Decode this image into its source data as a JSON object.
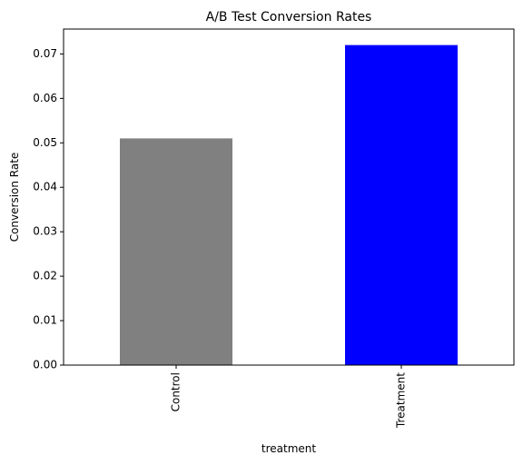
{
  "chart_data": {
    "type": "bar",
    "title": "A/B Test Conversion Rates",
    "xlabel": "treatment",
    "ylabel": "Conversion Rate",
    "categories": [
      "Control",
      "Treatment"
    ],
    "values": [
      0.051,
      0.072
    ],
    "colors": [
      "#808080",
      "#0000ff"
    ],
    "ylim": [
      0,
      0.0756
    ],
    "yticks": [
      0.0,
      0.01,
      0.02,
      0.03,
      0.04,
      0.05,
      0.06,
      0.07
    ],
    "ytick_labels": [
      "0.00",
      "0.01",
      "0.02",
      "0.03",
      "0.04",
      "0.05",
      "0.06",
      "0.07"
    ],
    "grid": false,
    "legend": "none"
  }
}
